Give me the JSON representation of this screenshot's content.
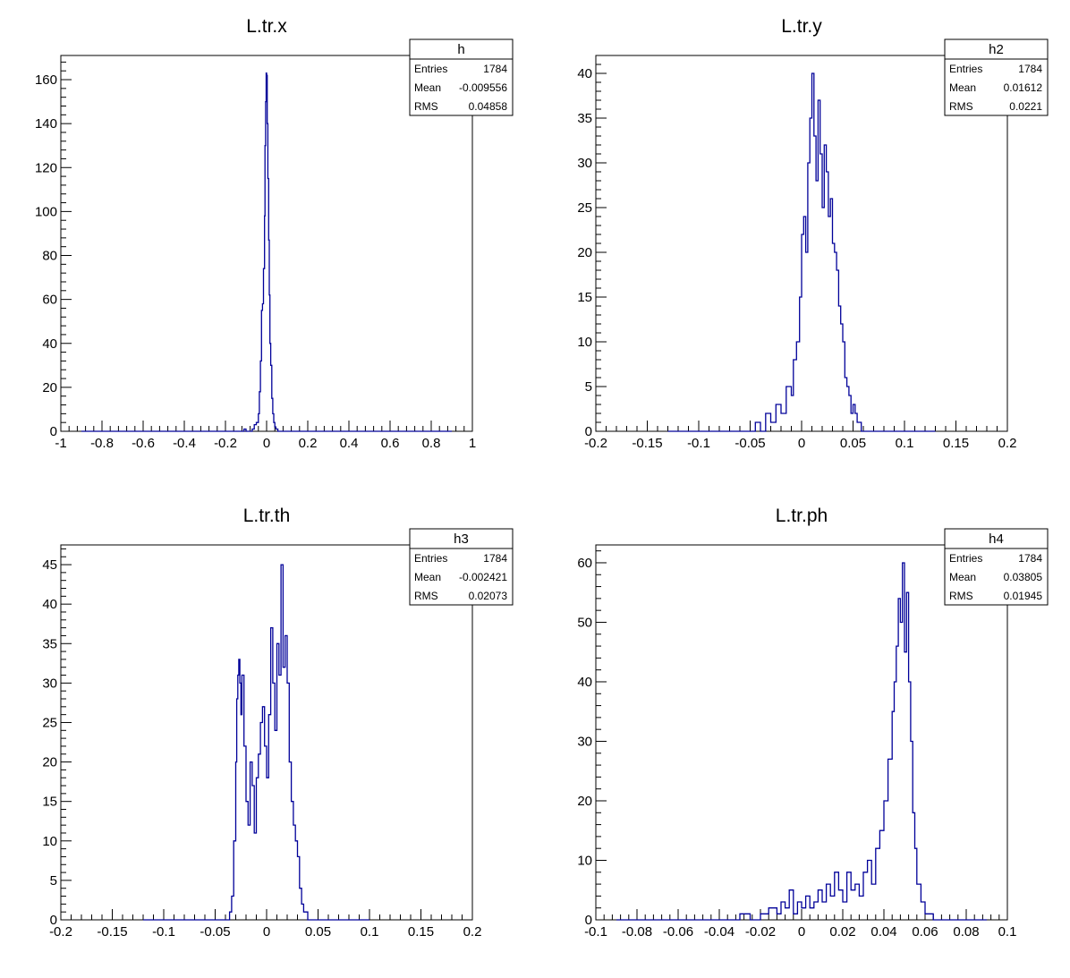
{
  "chart_data": [
    {
      "type": "histogram",
      "title": "L.tr.x",
      "stats": {
        "name": "h",
        "entries_label": "Entries",
        "entries": "1784",
        "mean_label": "Mean",
        "mean": "-0.009556",
        "rms_label": "RMS",
        "rms": "0.04858"
      },
      "xlim": [
        -1,
        1
      ],
      "ylim": [
        0,
        171
      ],
      "x_ticks": [
        -1,
        -0.8,
        -0.6,
        -0.4,
        -0.2,
        0,
        0.2,
        0.4,
        0.6,
        0.8,
        1
      ],
      "x_tick_labels": [
        "-1",
        "-0.8",
        "-0.6",
        "-0.4",
        "-0.2",
        "0",
        "0.2",
        "0.4",
        "0.6",
        "0.8",
        "1"
      ],
      "y_ticks": [
        0,
        20,
        40,
        60,
        80,
        100,
        120,
        140,
        160
      ],
      "y_tick_labels": [
        "0",
        "20",
        "40",
        "60",
        "80",
        "100",
        "120",
        "140",
        "160"
      ],
      "color": "#000099",
      "points": [
        [
          -0.9,
          0
        ],
        [
          -0.12,
          0
        ],
        [
          -0.11,
          1
        ],
        [
          -0.1,
          0
        ],
        [
          -0.07,
          1
        ],
        [
          -0.06,
          3
        ],
        [
          -0.05,
          4
        ],
        [
          -0.04,
          8
        ],
        [
          -0.035,
          18
        ],
        [
          -0.03,
          32
        ],
        [
          -0.025,
          55
        ],
        [
          -0.02,
          58
        ],
        [
          -0.015,
          74
        ],
        [
          -0.01,
          98
        ],
        [
          -0.008,
          130
        ],
        [
          -0.005,
          150
        ],
        [
          -0.002,
          163
        ],
        [
          0.0,
          162
        ],
        [
          0.003,
          140
        ],
        [
          0.006,
          115
        ],
        [
          0.01,
          87
        ],
        [
          0.013,
          62
        ],
        [
          0.016,
          40
        ],
        [
          0.02,
          30
        ],
        [
          0.025,
          15
        ],
        [
          0.03,
          8
        ],
        [
          0.035,
          4
        ],
        [
          0.04,
          2
        ],
        [
          0.045,
          1
        ],
        [
          0.05,
          1
        ],
        [
          0.055,
          0
        ],
        [
          0.9,
          0
        ]
      ]
    },
    {
      "type": "histogram",
      "title": "L.tr.y",
      "stats": {
        "name": "h2",
        "entries_label": "Entries",
        "entries": "1784",
        "mean_label": "Mean",
        "mean": "0.01612",
        "rms_label": "RMS",
        "rms": "0.0221"
      },
      "xlim": [
        -0.2,
        0.2
      ],
      "ylim": [
        0,
        42
      ],
      "x_ticks": [
        -0.2,
        -0.15,
        -0.1,
        -0.05,
        0,
        0.05,
        0.1,
        0.15,
        0.2
      ],
      "x_tick_labels": [
        "-0.2",
        "-0.15",
        "-0.1",
        "-0.05",
        "0",
        "0.05",
        "0.1",
        "0.15",
        "0.2"
      ],
      "y_ticks": [
        0,
        5,
        10,
        15,
        20,
        25,
        30,
        35,
        40
      ],
      "y_tick_labels": [
        "0",
        "5",
        "10",
        "15",
        "20",
        "25",
        "30",
        "35",
        "40"
      ],
      "color": "#000099",
      "points": [
        [
          -0.13,
          0
        ],
        [
          -0.05,
          0
        ],
        [
          -0.045,
          1
        ],
        [
          -0.04,
          0
        ],
        [
          -0.035,
          2
        ],
        [
          -0.03,
          1
        ],
        [
          -0.025,
          3
        ],
        [
          -0.02,
          2
        ],
        [
          -0.015,
          5
        ],
        [
          -0.01,
          4
        ],
        [
          -0.008,
          8
        ],
        [
          -0.005,
          10
        ],
        [
          -0.002,
          15
        ],
        [
          0.0,
          22
        ],
        [
          0.002,
          24
        ],
        [
          0.004,
          20
        ],
        [
          0.006,
          30
        ],
        [
          0.008,
          35
        ],
        [
          0.01,
          40
        ],
        [
          0.012,
          33
        ],
        [
          0.014,
          28
        ],
        [
          0.016,
          37
        ],
        [
          0.018,
          31
        ],
        [
          0.02,
          25
        ],
        [
          0.022,
          32
        ],
        [
          0.024,
          29
        ],
        [
          0.026,
          24
        ],
        [
          0.028,
          26
        ],
        [
          0.03,
          21
        ],
        [
          0.032,
          20
        ],
        [
          0.034,
          18
        ],
        [
          0.036,
          14
        ],
        [
          0.038,
          12
        ],
        [
          0.04,
          10
        ],
        [
          0.042,
          6
        ],
        [
          0.044,
          5
        ],
        [
          0.046,
          4
        ],
        [
          0.048,
          2
        ],
        [
          0.05,
          3
        ],
        [
          0.052,
          2
        ],
        [
          0.054,
          1
        ],
        [
          0.056,
          1
        ],
        [
          0.058,
          0
        ],
        [
          0.13,
          0
        ]
      ]
    },
    {
      "type": "histogram",
      "title": "L.tr.th",
      "stats": {
        "name": "h3",
        "entries_label": "Entries",
        "entries": "1784",
        "mean_label": "Mean",
        "mean": "-0.002421",
        "rms_label": "RMS",
        "rms": "0.02073"
      },
      "xlim": [
        -0.2,
        0.2
      ],
      "ylim": [
        0,
        47.5
      ],
      "x_ticks": [
        -0.2,
        -0.15,
        -0.1,
        -0.05,
        0,
        0.05,
        0.1,
        0.15,
        0.2
      ],
      "x_tick_labels": [
        "-0.2",
        "-0.15",
        "-0.1",
        "-0.05",
        "0",
        "0.05",
        "0.1",
        "0.15",
        "0.2"
      ],
      "y_ticks": [
        0,
        5,
        10,
        15,
        20,
        25,
        30,
        35,
        40,
        45
      ],
      "y_tick_labels": [
        "0",
        "5",
        "10",
        "15",
        "20",
        "25",
        "30",
        "35",
        "40",
        "45"
      ],
      "color": "#000099",
      "points": [
        [
          -0.12,
          0
        ],
        [
          -0.04,
          0
        ],
        [
          -0.036,
          1
        ],
        [
          -0.034,
          3
        ],
        [
          -0.032,
          10
        ],
        [
          -0.03,
          20
        ],
        [
          -0.029,
          28
        ],
        [
          -0.028,
          31
        ],
        [
          -0.027,
          33
        ],
        [
          -0.026,
          30
        ],
        [
          -0.025,
          26
        ],
        [
          -0.024,
          31
        ],
        [
          -0.022,
          22
        ],
        [
          -0.02,
          15
        ],
        [
          -0.018,
          12
        ],
        [
          -0.016,
          20
        ],
        [
          -0.014,
          17
        ],
        [
          -0.012,
          11
        ],
        [
          -0.01,
          18
        ],
        [
          -0.008,
          21
        ],
        [
          -0.006,
          25
        ],
        [
          -0.004,
          27
        ],
        [
          -0.002,
          22
        ],
        [
          0.0,
          18
        ],
        [
          0.002,
          26
        ],
        [
          0.004,
          37
        ],
        [
          0.006,
          30
        ],
        [
          0.008,
          24
        ],
        [
          0.01,
          35
        ],
        [
          0.012,
          31
        ],
        [
          0.014,
          45
        ],
        [
          0.016,
          32
        ],
        [
          0.018,
          36
        ],
        [
          0.02,
          30
        ],
        [
          0.022,
          20
        ],
        [
          0.024,
          15
        ],
        [
          0.026,
          12
        ],
        [
          0.028,
          10
        ],
        [
          0.03,
          8
        ],
        [
          0.032,
          4
        ],
        [
          0.034,
          2
        ],
        [
          0.036,
          1
        ],
        [
          0.038,
          1
        ],
        [
          0.04,
          0
        ],
        [
          0.1,
          0
        ]
      ]
    },
    {
      "type": "histogram",
      "title": "L.tr.ph",
      "stats": {
        "name": "h4",
        "entries_label": "Entries",
        "entries": "1784",
        "mean_label": "Mean",
        "mean": "0.03805",
        "rms_label": "RMS",
        "rms": "0.01945"
      },
      "xlim": [
        -0.1,
        0.1
      ],
      "ylim": [
        0,
        63
      ],
      "x_ticks": [
        -0.1,
        -0.08,
        -0.06,
        -0.04,
        -0.02,
        0,
        0.02,
        0.04,
        0.06,
        0.08,
        0.1
      ],
      "x_tick_labels": [
        "-0.1",
        "-0.08",
        "-0.06",
        "-0.04",
        "-0.02",
        "0",
        "0.02",
        "0.04",
        "0.06",
        "0.08",
        "0.1"
      ],
      "y_ticks": [
        0,
        10,
        20,
        30,
        40,
        50,
        60
      ],
      "y_tick_labels": [
        "0",
        "10",
        "20",
        "30",
        "40",
        "50",
        "60"
      ],
      "color": "#000099",
      "points": [
        [
          -0.09,
          0
        ],
        [
          -0.035,
          0
        ],
        [
          -0.03,
          1
        ],
        [
          -0.025,
          0
        ],
        [
          -0.02,
          1
        ],
        [
          -0.016,
          2
        ],
        [
          -0.012,
          1
        ],
        [
          -0.01,
          3
        ],
        [
          -0.008,
          2
        ],
        [
          -0.006,
          5
        ],
        [
          -0.004,
          1
        ],
        [
          -0.002,
          3
        ],
        [
          0.0,
          2
        ],
        [
          0.002,
          4
        ],
        [
          0.004,
          2
        ],
        [
          0.006,
          3
        ],
        [
          0.008,
          5
        ],
        [
          0.01,
          3
        ],
        [
          0.012,
          6
        ],
        [
          0.014,
          4
        ],
        [
          0.016,
          8
        ],
        [
          0.018,
          5
        ],
        [
          0.02,
          3
        ],
        [
          0.022,
          8
        ],
        [
          0.024,
          5
        ],
        [
          0.026,
          6
        ],
        [
          0.028,
          4
        ],
        [
          0.03,
          8
        ],
        [
          0.032,
          10
        ],
        [
          0.034,
          6
        ],
        [
          0.036,
          12
        ],
        [
          0.038,
          15
        ],
        [
          0.04,
          20
        ],
        [
          0.042,
          27
        ],
        [
          0.044,
          35
        ],
        [
          0.045,
          40
        ],
        [
          0.046,
          46
        ],
        [
          0.047,
          54
        ],
        [
          0.048,
          50
        ],
        [
          0.049,
          60
        ],
        [
          0.05,
          45
        ],
        [
          0.051,
          55
        ],
        [
          0.052,
          40
        ],
        [
          0.053,
          30
        ],
        [
          0.054,
          18
        ],
        [
          0.055,
          12
        ],
        [
          0.056,
          6
        ],
        [
          0.058,
          3
        ],
        [
          0.06,
          1
        ],
        [
          0.062,
          1
        ],
        [
          0.064,
          0
        ],
        [
          0.09,
          0
        ]
      ]
    }
  ]
}
